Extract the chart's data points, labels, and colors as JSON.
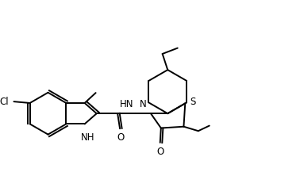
{
  "bg_color": "#ffffff",
  "line_color": "#000000",
  "line_width": 1.4,
  "font_size": 8.5,
  "figsize": [
    3.78,
    2.46
  ],
  "dpi": 100,
  "xlim": [
    0,
    10
  ],
  "ylim": [
    0,
    6.5
  ]
}
